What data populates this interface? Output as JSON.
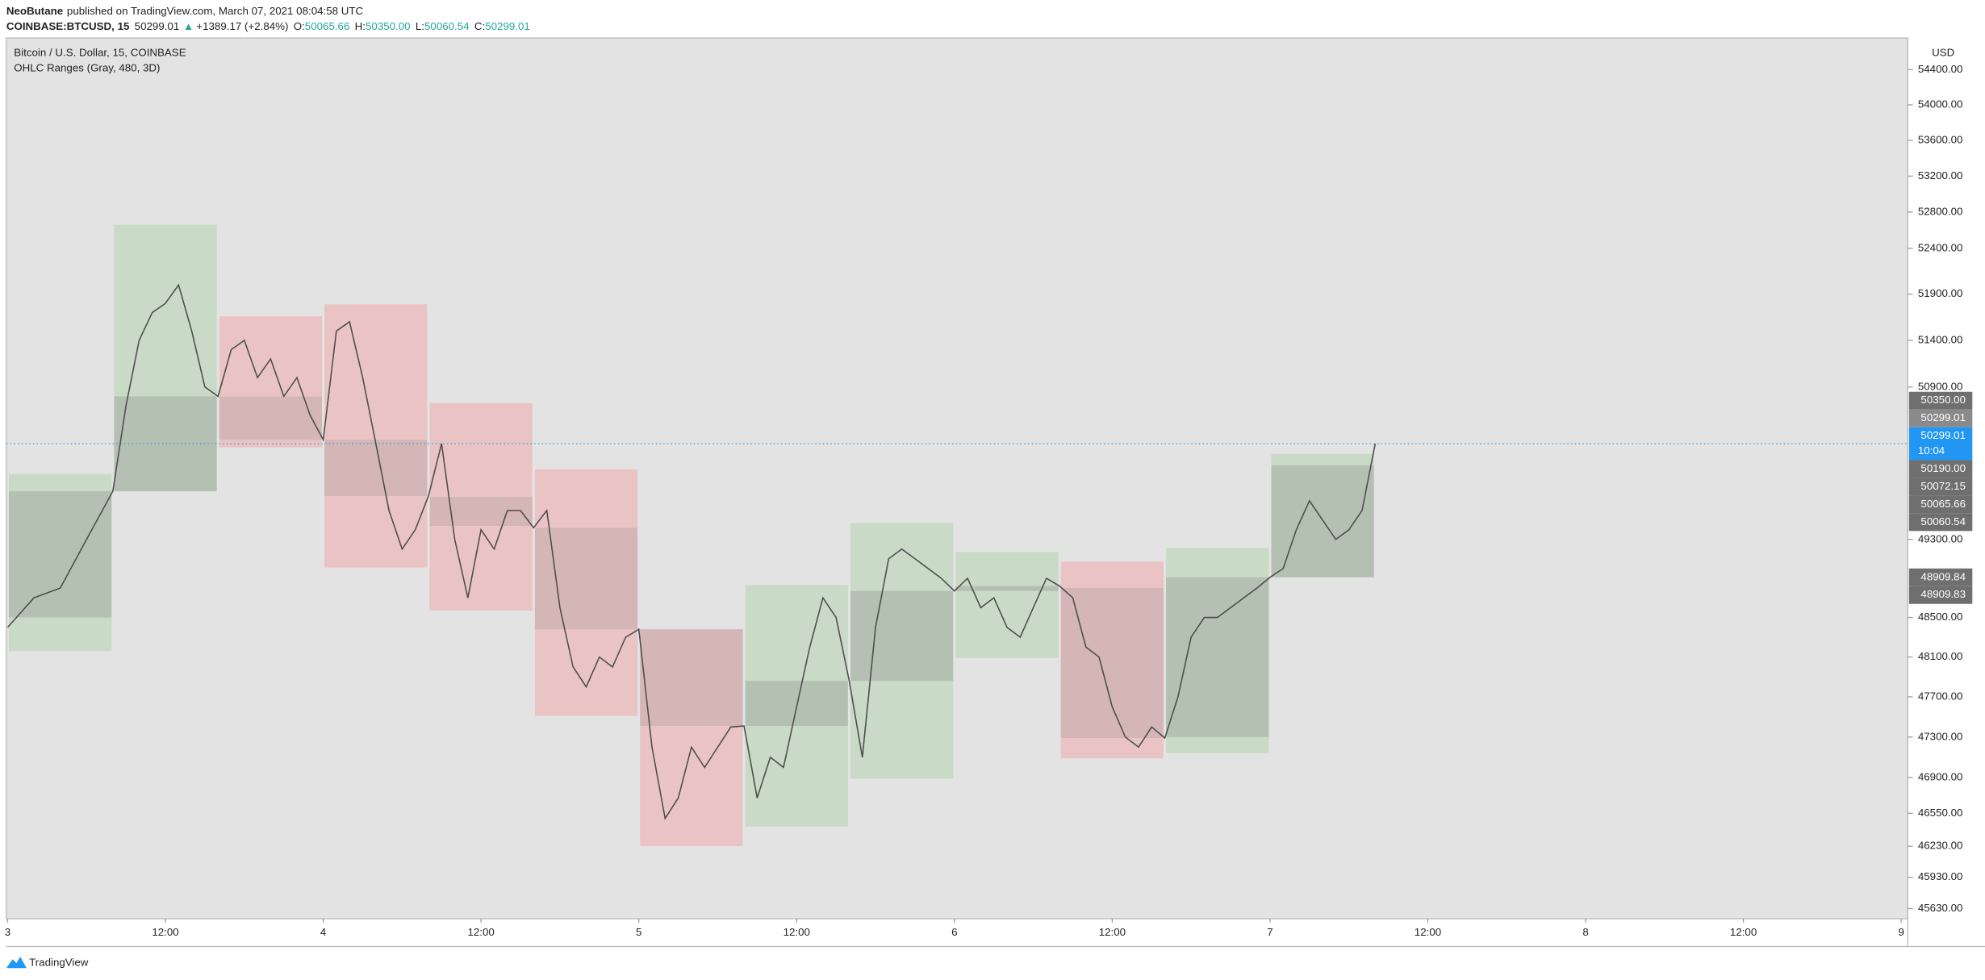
{
  "header": {
    "author": "NeoButane",
    "published": "published on TradingView.com, March 07, 2021 08:04:58 UTC",
    "symbol": "COINBASE:BTCUSD, 15",
    "last": "50299.01",
    "change": "+1389.17 (+2.84%)",
    "ohlc": [
      {
        "key": "O:",
        "value": "50065.66"
      },
      {
        "key": "H:",
        "value": "50350.00"
      },
      {
        "key": "L:",
        "value": "50060.54"
      },
      {
        "key": "C:",
        "value": "50299.01"
      }
    ]
  },
  "chart_data": {
    "type": "line",
    "title": "Bitcoin / U.S. Dollar, 15, COINBASE",
    "subtitle": "OHLC Ranges (Gray, 480, 3D)",
    "y_label": "USD",
    "log_scale": true,
    "grid": false,
    "color": "#4d4d4d",
    "x": [
      0,
      2,
      4,
      6,
      8,
      9,
      10,
      11,
      12,
      13,
      14,
      15,
      16,
      17,
      18,
      19,
      20,
      21,
      22,
      23,
      24,
      25,
      26,
      27,
      28,
      29,
      30,
      31,
      32,
      33,
      34,
      35,
      36,
      37,
      38,
      39,
      40,
      41,
      42,
      43,
      44,
      45,
      46,
      47,
      48,
      49,
      50,
      51,
      52,
      53,
      54,
      55,
      56,
      57,
      58,
      59,
      60,
      61,
      62,
      63,
      64,
      65,
      66,
      67,
      68,
      69,
      70,
      71,
      72,
      73,
      74,
      75,
      76,
      77,
      78,
      79,
      80,
      81,
      82,
      83,
      84,
      85,
      86,
      87,
      88,
      89,
      90,
      91,
      92,
      93,
      94,
      95,
      96,
      97,
      98,
      99,
      100,
      101,
      102,
      103,
      104
    ],
    "values": [
      48400,
      48700,
      48800,
      49300,
      49800,
      50700,
      51400,
      51700,
      51800,
      52000,
      51500,
      50900,
      50800,
      51300,
      51400,
      51000,
      51200,
      50800,
      51000,
      50600,
      50340,
      51500,
      51600,
      51000,
      50300,
      49600,
      49200,
      49400,
      49750,
      50300,
      49300,
      48700,
      49400,
      49200,
      49600,
      49600,
      49420,
      49600,
      48600,
      48000,
      47800,
      48100,
      48000,
      48300,
      48380,
      47200,
      46500,
      46700,
      47200,
      47000,
      47200,
      47400,
      47410,
      46700,
      47100,
      47000,
      47600,
      48200,
      48700,
      48500,
      47860,
      47100,
      48400,
      49100,
      49200,
      49100,
      49000,
      48900,
      48770,
      48900,
      48600,
      48700,
      48400,
      48300,
      48600,
      48900,
      48820,
      48700,
      48200,
      48100,
      47600,
      47300,
      47200,
      47400,
      47290,
      47700,
      48300,
      48500,
      48500,
      48600,
      48700,
      48800,
      48910,
      49000,
      49400,
      49700,
      49500,
      49300,
      49400,
      49600,
      50299
    ],
    "xlim": [
      -0.1,
      144.5
    ],
    "xticks": [
      {
        "value": 0,
        "label": "3"
      },
      {
        "value": 12,
        "label": "12:00"
      },
      {
        "value": 24,
        "label": "4"
      },
      {
        "value": 36,
        "label": "12:00"
      },
      {
        "value": 48,
        "label": "5"
      },
      {
        "value": 60,
        "label": "12:00"
      },
      {
        "value": 72,
        "label": "6"
      },
      {
        "value": 84,
        "label": "12:00"
      },
      {
        "value": 96,
        "label": "7"
      },
      {
        "value": 108,
        "label": "12:00"
      },
      {
        "value": 120,
        "label": "8"
      },
      {
        "value": 132,
        "label": "12:00"
      },
      {
        "value": 144,
        "label": "9"
      }
    ],
    "ylim": [
      45533,
      54762
    ],
    "yticks": [
      {
        "value": 54400,
        "label": "54400.00"
      },
      {
        "value": 54000,
        "label": "54000.00"
      },
      {
        "value": 53600,
        "label": "53600.00"
      },
      {
        "value": 53200,
        "label": "53200.00"
      },
      {
        "value": 52800,
        "label": "52800.00"
      },
      {
        "value": 52400,
        "label": "52400.00"
      },
      {
        "value": 51900,
        "label": "51900.00"
      },
      {
        "value": 51400,
        "label": "51400.00"
      },
      {
        "value": 50900,
        "label": "50900.00"
      },
      {
        "value": 49300,
        "label": "49300.00"
      },
      {
        "value": 48500,
        "label": "48500.00"
      },
      {
        "value": 48100,
        "label": "48100.00"
      },
      {
        "value": 47700,
        "label": "47700.00"
      },
      {
        "value": 47300,
        "label": "47300.00"
      },
      {
        "value": 46900,
        "label": "46900.00"
      },
      {
        "value": 46550,
        "label": "46550.00"
      },
      {
        "value": 46230,
        "label": "46230.00"
      },
      {
        "value": 45930,
        "label": "45930.00"
      },
      {
        "value": 45630,
        "label": "45630.00"
      }
    ],
    "ranges": {
      "period": 8,
      "start": [
        0,
        8,
        16,
        24,
        32,
        40,
        48,
        56,
        64,
        72,
        80,
        88,
        96
      ],
      "open": [
        48500,
        49800,
        50800,
        50340,
        49740,
        49420,
        48380,
        47410,
        47860,
        48770,
        48800,
        47300,
        48909.84
      ],
      "high": [
        49980,
        52660,
        51660,
        51790,
        50730,
        50030,
        48380,
        48830,
        49470,
        49170,
        49070,
        49210,
        50190
      ],
      "low": [
        48160,
        49800,
        50260,
        49010,
        48570,
        47510,
        46230,
        46420,
        46890,
        48090,
        47090,
        47140,
        48909.83
      ],
      "close": [
        49800,
        50800,
        50340,
        49750,
        49440,
        48380,
        47410,
        47860,
        48770,
        48820,
        47290,
        48910,
        50072.15
      ],
      "up_color": "#c9dac6",
      "up_body_color": "#b4c0b2",
      "down_color": "#eac4c4",
      "down_body_color": "#d4b6b6"
    },
    "price_labels": [
      {
        "value": 50350,
        "label": "50350.00",
        "color": "#6f6f6f"
      },
      {
        "value": 50299.01,
        "label": "50299.01",
        "color": "#8a8a8a"
      },
      {
        "value": 50299.01,
        "label": "50299.01",
        "countdown": "10:04",
        "color": "#2196f3",
        "current": true
      },
      {
        "value": 50190,
        "label": "50190.00",
        "color": "#6f6f6f"
      },
      {
        "value": 50072.15,
        "label": "50072.15",
        "color": "#6f6f6f"
      },
      {
        "value": 50065.66,
        "label": "50065.66",
        "color": "#6f6f6f"
      },
      {
        "value": 50060.54,
        "label": "50060.54",
        "color": "#6f6f6f"
      },
      {
        "value": 48909.84,
        "label": "48909.84",
        "color": "#6f6f6f"
      },
      {
        "value": 48909.83,
        "label": "48909.83",
        "color": "#6f6f6f"
      }
    ]
  },
  "footer": {
    "brand": "TradingView"
  }
}
